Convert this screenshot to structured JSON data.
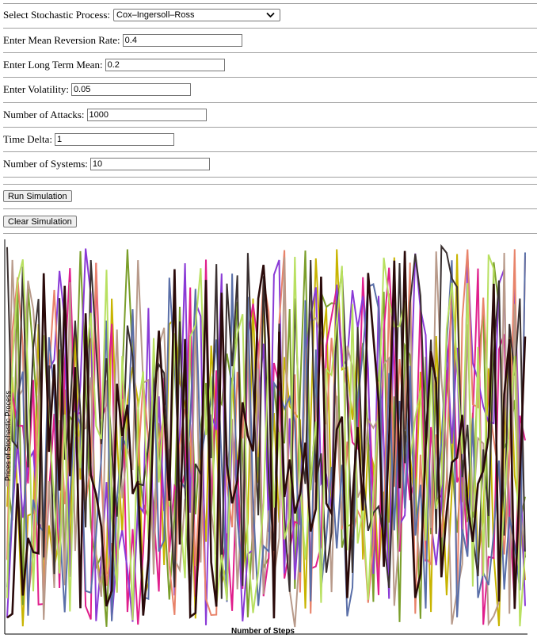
{
  "form": {
    "process_label": "Select Stochastic Process:",
    "process_value": "Cox–Ingersoll–Ross",
    "mean_reversion_label": "Enter Mean Reversion Rate:",
    "mean_reversion_value": "0.4",
    "long_term_mean_label": "Enter Long Term Mean:",
    "long_term_mean_value": "0.2",
    "volatility_label": "Enter Volatility:",
    "volatility_value": "0.05",
    "attacks_label": "Number of Attacks:",
    "attacks_value": "1000",
    "time_delta_label": "Time Delta:",
    "time_delta_value": "1",
    "systems_label": "Number of Systems:",
    "systems_value": "10"
  },
  "buttons": {
    "run_label": "Run Simulation",
    "clear_label": "Clear Simulation"
  },
  "icons": {
    "select_arrow": "chevron-down-icon"
  },
  "chart_data": {
    "type": "line",
    "xlabel": "Number of Steps",
    "ylabel": "Prices of Stochastic Process",
    "series_count": 10,
    "steps": 100,
    "colors": [
      "#c8b400",
      "#7a9e2a",
      "#e01e8c",
      "#8a3ad6",
      "#e8836a",
      "#b89a8a",
      "#5a6fa8",
      "#3a3030",
      "#b8e060",
      "#2a0a0a"
    ]
  }
}
